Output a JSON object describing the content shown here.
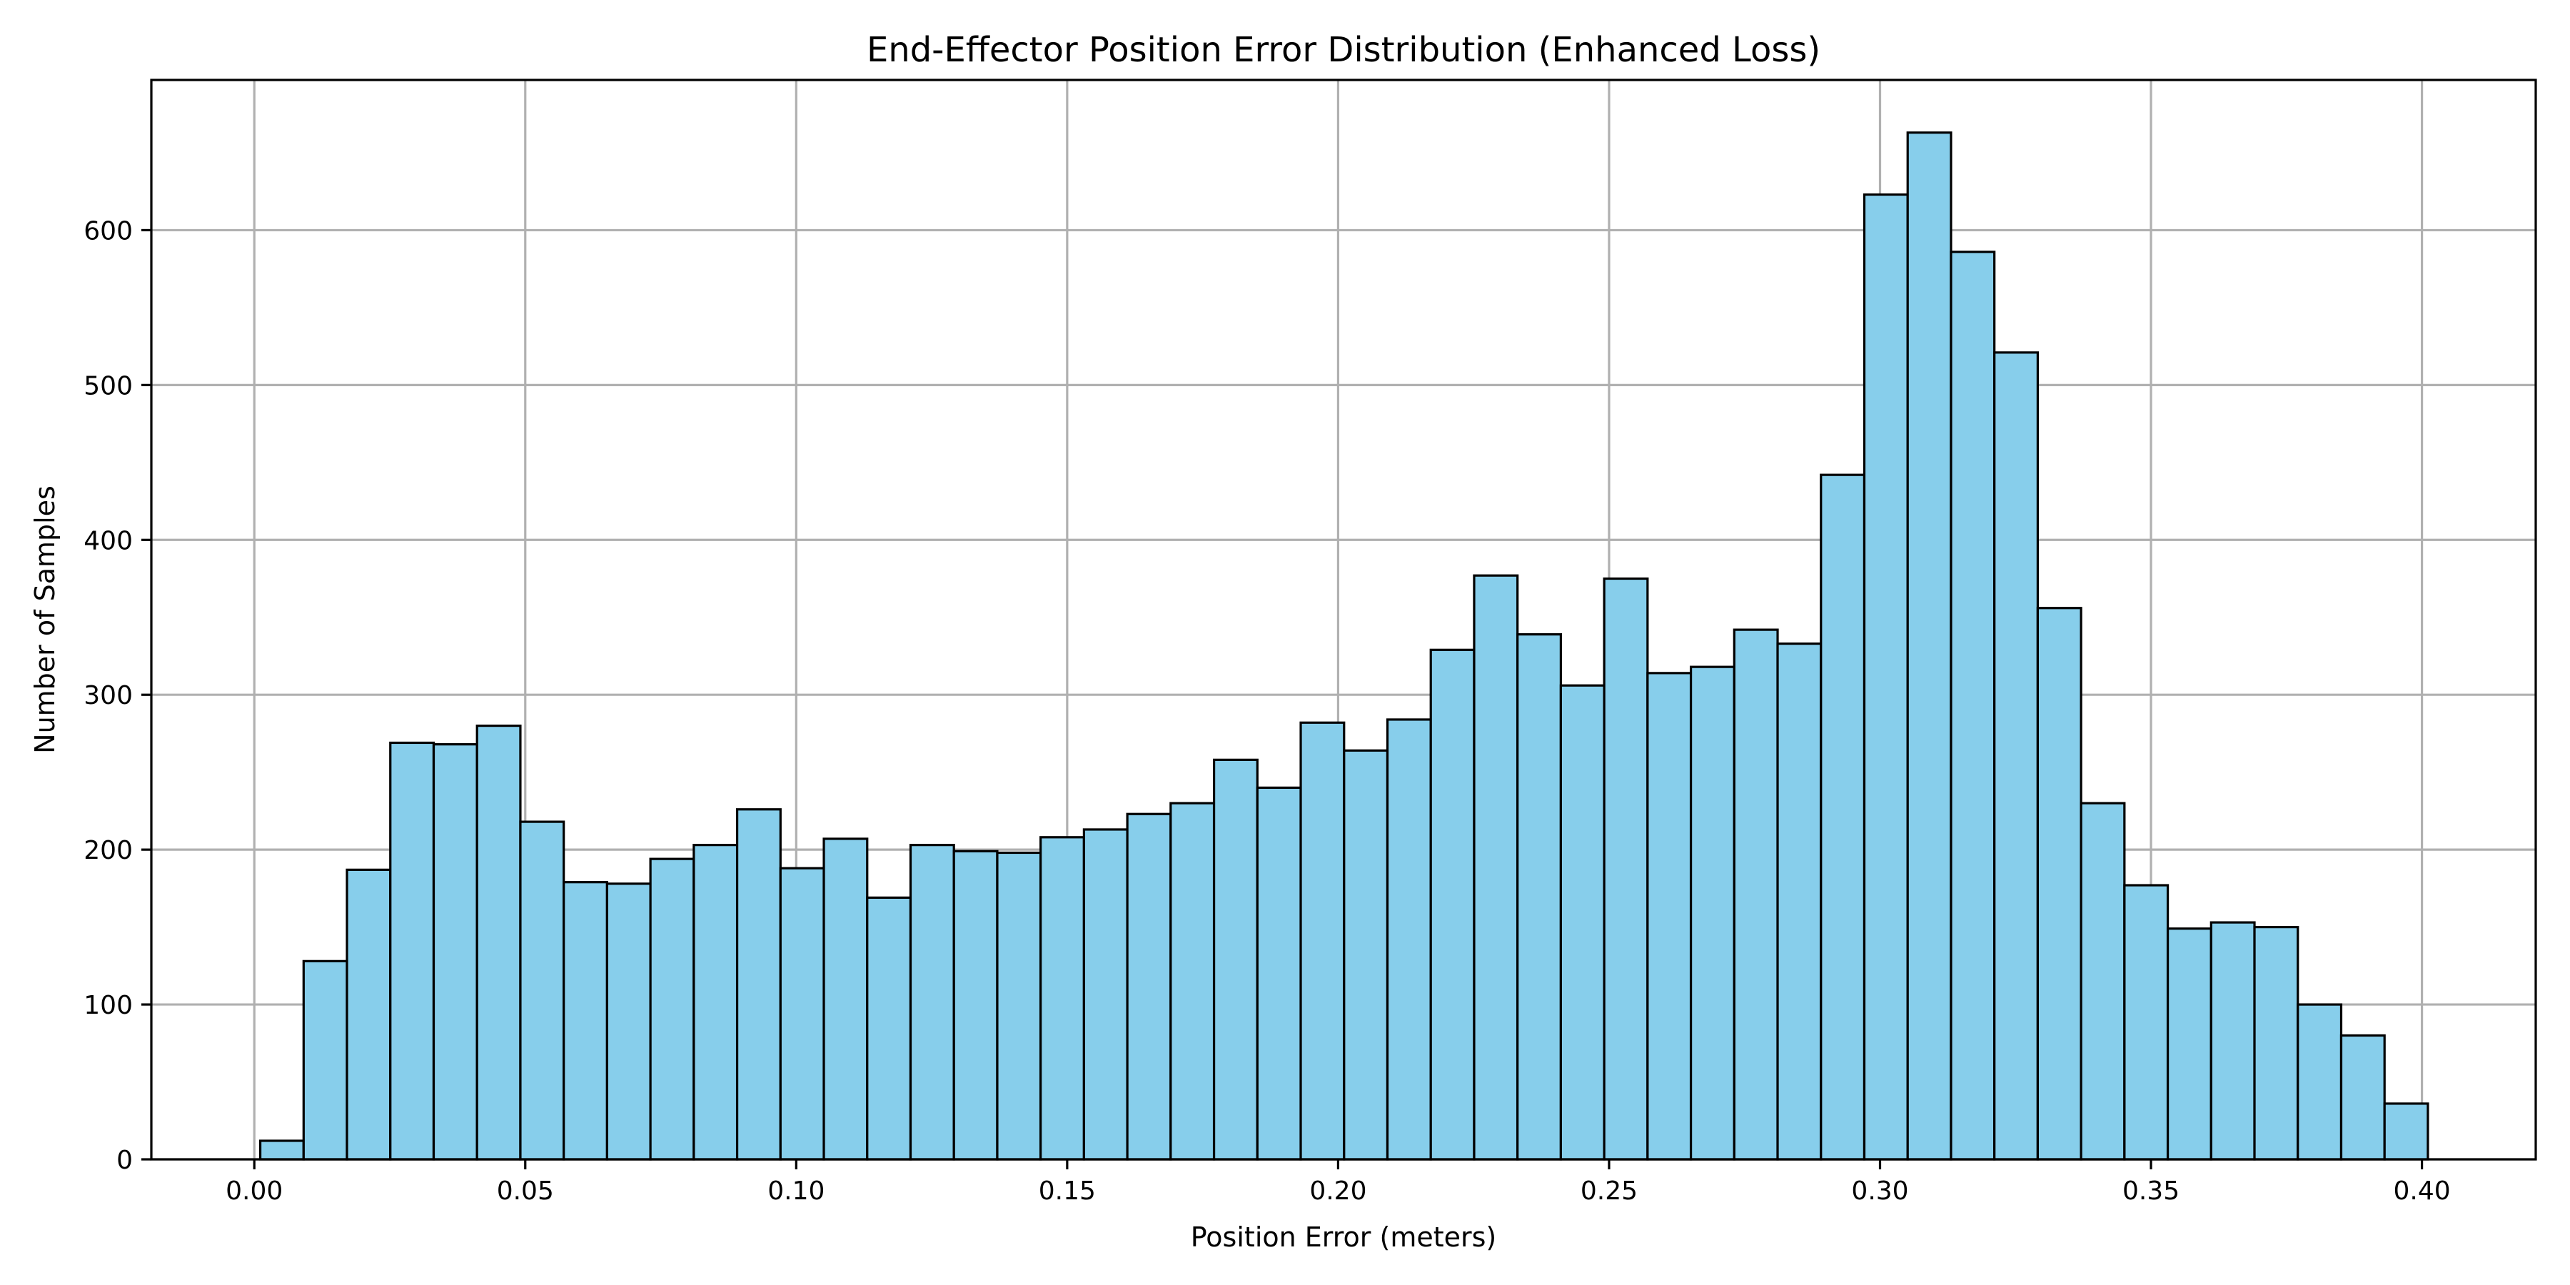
{
  "chart_data": {
    "type": "bar",
    "title": "End-Effector Position Error Distribution (Enhanced Loss)",
    "xlabel": "Position Error (meters)",
    "ylabel": "Number of Samples",
    "xlim": [
      -0.019,
      0.421
    ],
    "ylim": [
      0,
      697
    ],
    "x_ticks": [
      0.0,
      0.05,
      0.1,
      0.15,
      0.2,
      0.25,
      0.3,
      0.35,
      0.4
    ],
    "x_tick_labels": [
      "0.00",
      "0.05",
      "0.10",
      "0.15",
      "0.20",
      "0.25",
      "0.30",
      "0.35",
      "0.40"
    ],
    "y_ticks": [
      0,
      100,
      200,
      300,
      400,
      500,
      600
    ],
    "y_tick_labels": [
      "0",
      "100",
      "200",
      "300",
      "400",
      "500",
      "600"
    ],
    "grid": true,
    "bin_start": 0.0011,
    "bin_width": 0.008,
    "values": [
      12,
      128,
      187,
      269,
      268,
      280,
      218,
      179,
      178,
      194,
      203,
      226,
      188,
      207,
      169,
      203,
      199,
      198,
      208,
      213,
      223,
      230,
      258,
      240,
      282,
      264,
      284,
      329,
      377,
      339,
      306,
      375,
      314,
      318,
      342,
      333,
      442,
      623,
      663,
      586,
      521,
      356,
      230,
      177,
      149,
      153,
      150,
      100,
      80,
      36
    ],
    "colors": {
      "bar_fill": "#87ceeb",
      "bar_edge": "#000000",
      "grid": "#b0b0b0"
    }
  }
}
